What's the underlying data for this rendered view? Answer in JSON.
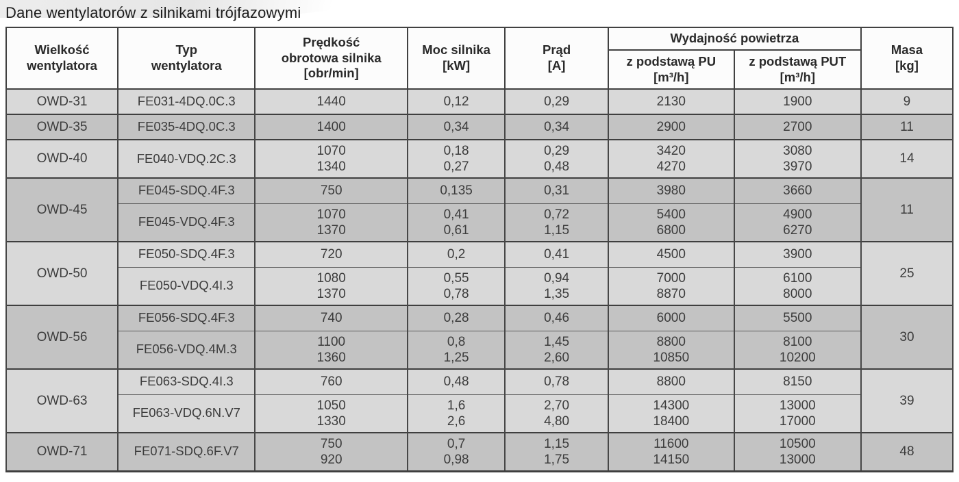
{
  "page": {
    "title": "Dane wentylatorów z silnikami trójfazowymi"
  },
  "table": {
    "header": {
      "size": "Wielkość\nwentylatora",
      "type": "Typ\nwentylatora",
      "speed": "Prędkość\nobrotowa silnika\n[obr/min]",
      "power": "Moc silnika\n[kW]",
      "current": "Prąd\n[A]",
      "airflow_group": "Wydajność powietrza",
      "airflow_pu": "z podstawą PU\n[m³/h]",
      "airflow_put": "z podstawą PUT\n[m³/h]",
      "mass": "Masa\n[kg]"
    },
    "groups": [
      {
        "size": "OWD-31",
        "mass": "9",
        "shade": "light",
        "rows": [
          {
            "type": "FE031-4DQ.0C.3",
            "speed": "1440",
            "power": "0,12",
            "current": "0,29",
            "pu": "2130",
            "put": "1900"
          }
        ]
      },
      {
        "size": "OWD-35",
        "mass": "11",
        "shade": "dark",
        "rows": [
          {
            "type": "FE035-4DQ.0C.3",
            "speed": "1400",
            "power": "0,34",
            "current": "0,34",
            "pu": "2900",
            "put": "2700"
          }
        ]
      },
      {
        "size": "OWD-40",
        "mass": "14",
        "shade": "light",
        "rows": [
          {
            "type": "FE040-VDQ.2C.3",
            "speed": "1070\n1340",
            "power": "0,18\n0,27",
            "current": "0,29\n0,48",
            "pu": "3420\n4270",
            "put": "3080\n3970"
          }
        ]
      },
      {
        "size": "OWD-45",
        "mass": "11",
        "shade": "dark",
        "rows": [
          {
            "type": "FE045-SDQ.4F.3",
            "speed": "750",
            "power": "0,135",
            "current": "0,31",
            "pu": "3980",
            "put": "3660"
          },
          {
            "type": "FE045-VDQ.4F.3",
            "speed": "1070\n1370",
            "power": "0,41\n0,61",
            "current": "0,72\n1,15",
            "pu": "5400\n6800",
            "put": "4900\n6270"
          }
        ]
      },
      {
        "size": "OWD-50",
        "mass": "25",
        "shade": "light",
        "rows": [
          {
            "type": "FE050-SDQ.4F.3",
            "speed": "720",
            "power": "0,2",
            "current": "0,41",
            "pu": "4500",
            "put": "3900"
          },
          {
            "type": "FE050-VDQ.4I.3",
            "speed": "1080\n1370",
            "power": "0,55\n0,78",
            "current": "0,94\n1,35",
            "pu": "7000\n8870",
            "put": "6100\n8000"
          }
        ]
      },
      {
        "size": "OWD-56",
        "mass": "30",
        "shade": "dark",
        "rows": [
          {
            "type": "FE056-SDQ.4F.3",
            "speed": "740",
            "power": "0,28",
            "current": "0,46",
            "pu": "6000",
            "put": "5500"
          },
          {
            "type": "FE056-VDQ.4M.3",
            "speed": "1100\n1360",
            "power": "0,8\n1,25",
            "current": "1,45\n2,60",
            "pu": "8800\n10850",
            "put": "8100\n10200"
          }
        ]
      },
      {
        "size": "OWD-63",
        "mass": "39",
        "shade": "light",
        "rows": [
          {
            "type": "FE063-SDQ.4I.3",
            "speed": "760",
            "power": "0,48",
            "current": "0,78",
            "pu": "8800",
            "put": "8150"
          },
          {
            "type": "FE063-VDQ.6N.V7",
            "speed": "1050\n1330",
            "power": "1,6\n2,6",
            "current": "2,70\n4,80",
            "pu": "14300\n18400",
            "put": "13000\n17000"
          }
        ]
      },
      {
        "size": "OWD-71",
        "mass": "48",
        "shade": "dark",
        "rows": [
          {
            "type": "FE071-SDQ.6F.V7",
            "speed": "750\n920",
            "power": "0,7\n0,98",
            "current": "1,15\n1,75",
            "pu": "11600\n14150",
            "put": "10500\n13000"
          }
        ]
      }
    ]
  }
}
